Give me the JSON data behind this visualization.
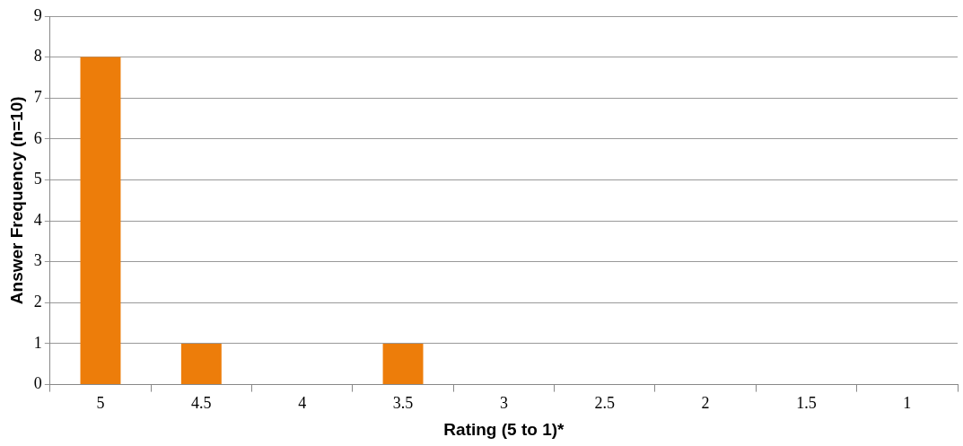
{
  "chart_data": {
    "type": "bar",
    "xlabel": "Rating (5 to 1)*",
    "ylabel": "Answer Frequency (n=10)",
    "categories": [
      "5",
      "4.5",
      "4",
      "3.5",
      "3",
      "2.5",
      "2",
      "1.5",
      "1"
    ],
    "values": [
      8,
      1,
      0,
      1,
      0,
      0,
      0,
      0,
      0
    ],
    "color": "#ed7d0a",
    "ylim": [
      0,
      9
    ],
    "yticks": [
      0,
      1,
      2,
      3,
      4,
      5,
      6,
      7,
      8,
      9
    ],
    "grid": "y",
    "legend": false
  }
}
